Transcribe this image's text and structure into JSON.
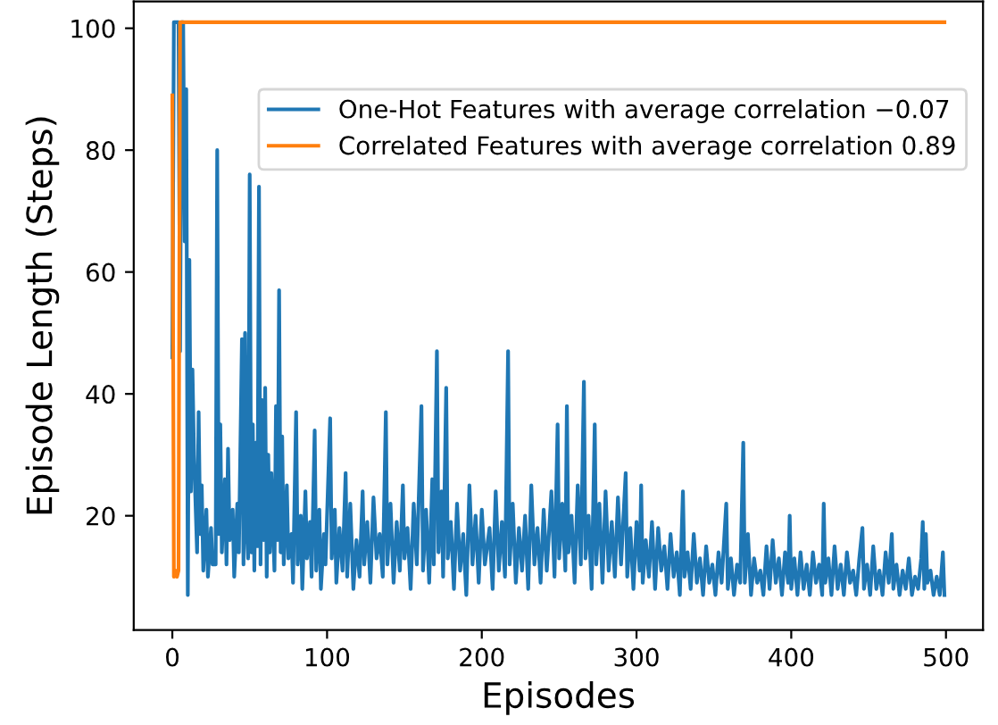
{
  "chart_data": {
    "type": "line",
    "xlabel": "Episodes",
    "ylabel": "Episode Length (Steps)",
    "xlim": [
      -24.95,
      523.95
    ],
    "xticks": [
      0,
      100,
      200,
      300,
      400,
      500
    ],
    "ylim": [
      1.25,
      104.4
    ],
    "yticks": [
      20,
      40,
      60,
      80,
      100
    ],
    "grid": false,
    "legend": "top right",
    "marker": "none",
    "line_style": "solid",
    "series": [
      {
        "name": "One-Hot Features with average correlation −0.07",
        "color": "#1f77b4",
        "x": [
          0,
          1,
          4,
          5,
          6,
          7,
          8,
          9,
          10,
          11,
          12,
          13,
          14,
          16,
          17,
          18,
          19,
          20,
          22,
          23,
          25,
          26,
          28,
          29,
          30,
          31,
          32,
          34,
          35,
          36,
          37,
          39,
          40,
          42,
          43,
          45,
          46,
          47,
          48,
          49,
          50,
          51,
          52,
          53,
          54,
          55,
          56,
          57,
          58,
          59,
          60,
          61,
          62,
          63,
          64,
          66,
          67,
          68,
          69,
          70,
          71,
          72,
          74,
          75,
          77,
          78,
          80,
          81,
          83,
          84,
          86,
          87,
          89,
          90,
          92,
          93,
          95,
          96,
          98,
          99,
          102,
          103,
          105,
          106,
          108,
          110,
          112,
          113,
          115,
          117,
          119,
          121,
          123,
          124,
          126,
          128,
          130,
          132,
          134,
          136,
          138,
          139,
          141,
          143,
          145,
          147,
          149,
          150,
          152,
          154,
          156,
          158,
          161,
          162,
          164,
          166,
          168,
          169,
          171,
          172,
          174,
          175,
          177,
          178,
          180,
          182,
          184,
          186,
          188,
          190,
          192,
          194,
          196,
          198,
          200,
          202,
          205,
          207,
          209,
          211,
          213,
          215,
          217,
          218,
          220,
          222,
          224,
          226,
          228,
          230,
          232,
          234,
          236,
          238,
          240,
          242,
          245,
          247,
          249,
          250,
          252,
          254,
          255,
          256,
          258,
          260,
          262,
          264,
          266,
          267,
          269,
          271,
          273,
          274,
          276,
          278,
          280,
          282,
          284,
          286,
          288,
          290,
          293,
          294,
          296,
          298,
          300,
          302,
          303,
          304,
          306,
          308,
          310,
          312,
          314,
          316,
          318,
          320,
          322,
          324,
          326,
          328,
          330,
          331,
          333,
          335,
          337,
          339,
          341,
          343,
          345,
          347,
          349,
          351,
          353,
          355,
          358,
          359,
          361,
          363,
          365,
          367,
          369,
          370,
          372,
          374,
          376,
          378,
          380,
          382,
          384,
          386,
          388,
          390,
          392,
          394,
          396,
          398,
          399,
          400,
          402,
          404,
          406,
          408,
          410,
          412,
          414,
          416,
          418,
          420,
          421,
          422,
          424,
          426,
          428,
          430,
          432,
          434,
          436,
          438,
          440,
          442,
          444,
          446,
          447,
          449,
          451,
          453,
          455,
          457,
          459,
          461,
          463,
          465,
          466,
          468,
          470,
          472,
          474,
          476,
          478,
          480,
          482,
          484,
          485,
          486,
          487,
          488,
          490,
          492,
          494,
          496,
          498,
          499
        ],
        "values": [
          46,
          101,
          101,
          47,
          101,
          101,
          65,
          90,
          7,
          62,
          24,
          44,
          30,
          14,
          37,
          17,
          25,
          11,
          21,
          10,
          18,
          12,
          12,
          80,
          17,
          35,
          14,
          26,
          12,
          31,
          16,
          21,
          10,
          22,
          14,
          49,
          12,
          50,
          18,
          13,
          76,
          14,
          35,
          11,
          32,
          15,
          74,
          12,
          39,
          16,
          41,
          10,
          30,
          14,
          27,
          11,
          38,
          16,
          57,
          14,
          33,
          12,
          25,
          13,
          17,
          9,
          37,
          12,
          20,
          8,
          24,
          13,
          19,
          10,
          34,
          11,
          21,
          8,
          17,
          12,
          36,
          13,
          21,
          9,
          18,
          11,
          27,
          10,
          22,
          8,
          16,
          10,
          24,
          12,
          19,
          9,
          23,
          13,
          17,
          10,
          37,
          12,
          22,
          9,
          19,
          11,
          25,
          13,
          18,
          8,
          22,
          12,
          38,
          11,
          21,
          9,
          26,
          12,
          47,
          14,
          24,
          10,
          41,
          13,
          19,
          8,
          22,
          11,
          17,
          7,
          25,
          12,
          20,
          9,
          21,
          12,
          18,
          8,
          24,
          11,
          19,
          10,
          47,
          12,
          22,
          9,
          18,
          11,
          20,
          8,
          25,
          12,
          18,
          9,
          21,
          11,
          24,
          10,
          35,
          13,
          22,
          11,
          38,
          14,
          20,
          9,
          25,
          12,
          42,
          13,
          20,
          8,
          35,
          12,
          22,
          9,
          24,
          11,
          19,
          10,
          23,
          12,
          27,
          10,
          18,
          8,
          19,
          11,
          25,
          9,
          16,
          10,
          19,
          8,
          18,
          11,
          15,
          8,
          17,
          10,
          14,
          7,
          24,
          10,
          14,
          8,
          17,
          9,
          13,
          7,
          15,
          9,
          12,
          7,
          14,
          9,
          22,
          8,
          13,
          7,
          12,
          9,
          32,
          9,
          17,
          7,
          13,
          9,
          11,
          7,
          15,
          8,
          16,
          9,
          13,
          7,
          14,
          9,
          20,
          8,
          13,
          7,
          14,
          8,
          12,
          7,
          14,
          9,
          12,
          7,
          22,
          9,
          13,
          7,
          15,
          8,
          12,
          7,
          14,
          9,
          11,
          7,
          13,
          18,
          8,
          12,
          7,
          15,
          8,
          11,
          7,
          14,
          9,
          17,
          8,
          12,
          7,
          11,
          8,
          13,
          7,
          10,
          8,
          13,
          19,
          8,
          17,
          9,
          11,
          7,
          10,
          7,
          14,
          7
        ]
      },
      {
        "name": "Correlated Features with average correlation 0.89",
        "color": "#ff7f0e",
        "x": [
          0,
          1,
          2,
          3,
          4,
          5,
          499
        ],
        "values": [
          89,
          10,
          11,
          10,
          11,
          101,
          101
        ]
      }
    ]
  }
}
